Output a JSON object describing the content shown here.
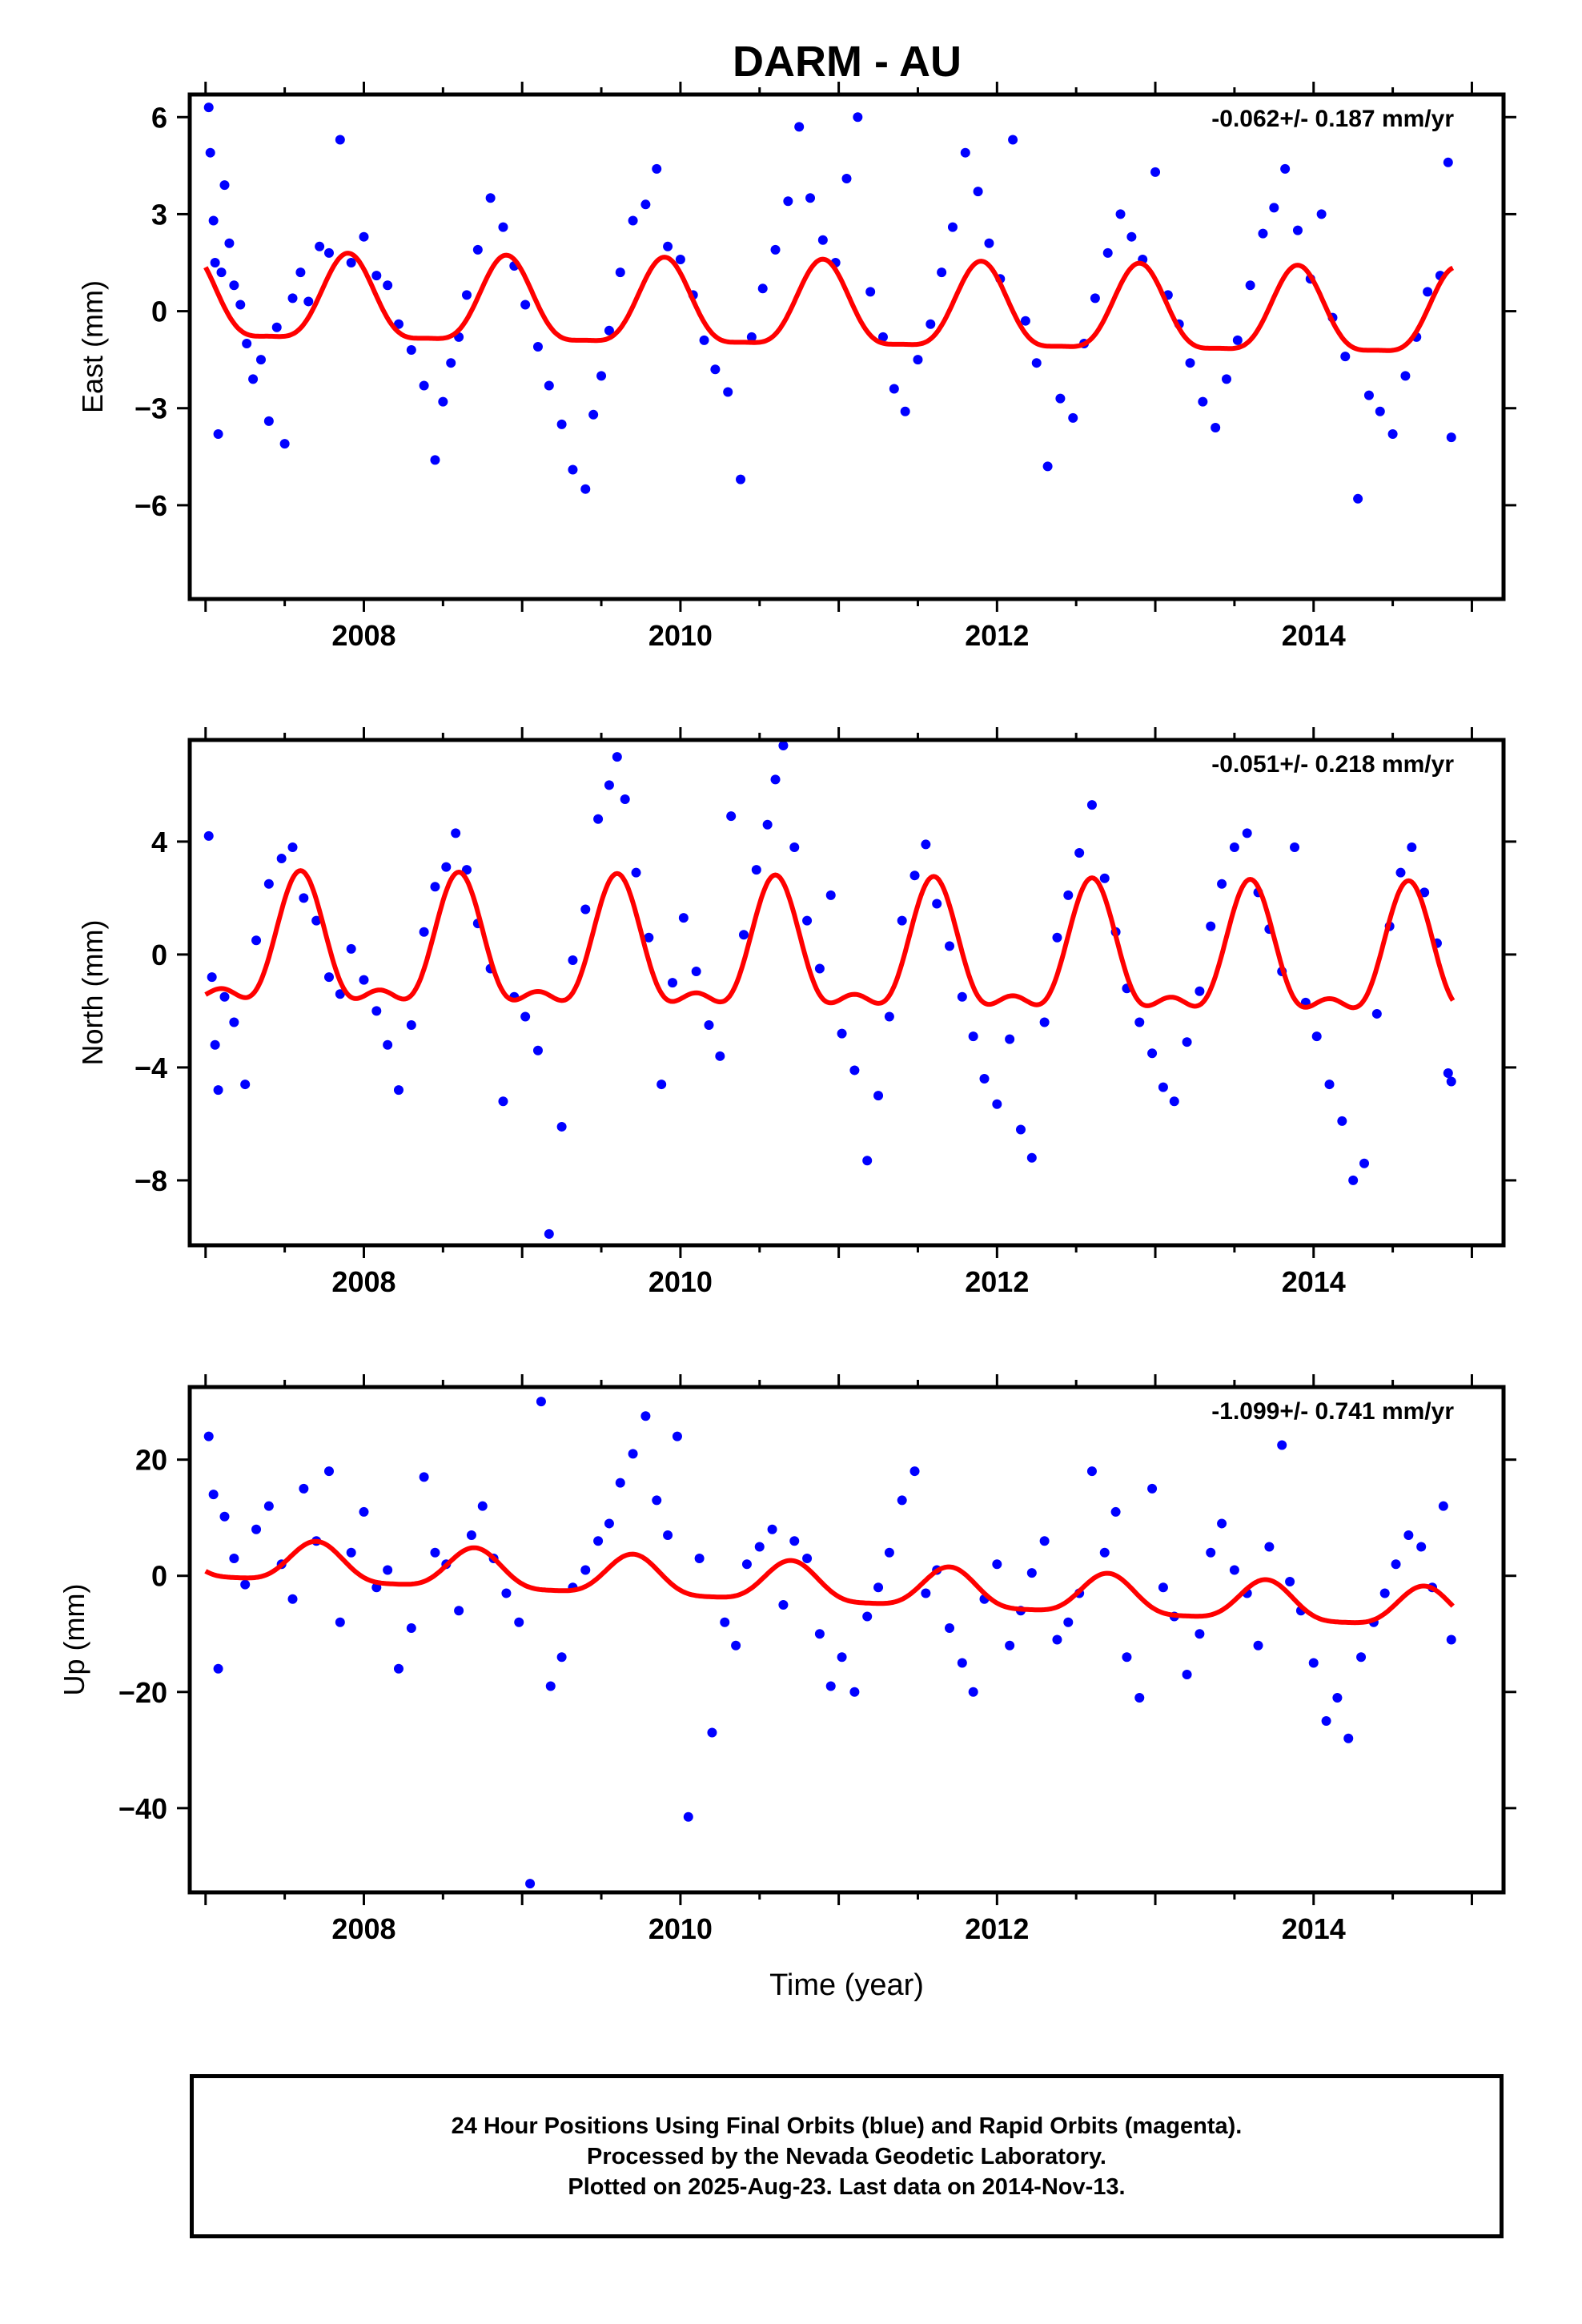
{
  "title": "DARM - AU",
  "chart_data": [
    {
      "type": "scatter",
      "ylabel": "East (mm)",
      "rate_label": "-0.062+/- 0.187 mm/yr",
      "xlim": [
        2006.9,
        2015.2
      ],
      "ylim": [
        -8.9,
        6.7
      ],
      "x_ticks": [
        2008,
        2010,
        2012,
        2014
      ],
      "y_ticks": [
        6,
        3,
        0,
        -3,
        -6
      ],
      "y_tick_labels": [
        "6",
        "3",
        "0",
        "−3",
        "−6"
      ],
      "grid": false,
      "series": [
        {
          "name": "Final Orbits",
          "color": "#0000ff",
          "x": [
            2007.02,
            2007.03,
            2007.05,
            2007.06,
            2007.08,
            2007.1,
            2007.12,
            2007.15,
            2007.18,
            2007.22,
            2007.26,
            2007.3,
            2007.35,
            2007.4,
            2007.45,
            2007.5,
            2007.55,
            2007.6,
            2007.65,
            2007.72,
            2007.78,
            2007.85,
            2007.92,
            2008.0,
            2008.08,
            2008.15,
            2008.22,
            2008.3,
            2008.38,
            2008.45,
            2008.5,
            2008.55,
            2008.6,
            2008.65,
            2008.72,
            2008.8,
            2008.88,
            2008.95,
            2009.02,
            2009.1,
            2009.17,
            2009.25,
            2009.32,
            2009.4,
            2009.45,
            2009.5,
            2009.55,
            2009.62,
            2009.7,
            2009.78,
            2009.85,
            2009.92,
            2010.0,
            2010.08,
            2010.15,
            2010.22,
            2010.3,
            2010.38,
            2010.45,
            2010.52,
            2010.6,
            2010.68,
            2010.75,
            2010.82,
            2010.9,
            2010.98,
            2011.05,
            2011.12,
            2011.2,
            2011.28,
            2011.35,
            2011.42,
            2011.5,
            2011.58,
            2011.65,
            2011.72,
            2011.8,
            2011.88,
            2011.95,
            2012.02,
            2012.1,
            2012.18,
            2012.25,
            2012.32,
            2012.4,
            2012.48,
            2012.55,
            2012.62,
            2012.7,
            2012.78,
            2012.85,
            2012.92,
            2013.0,
            2013.08,
            2013.15,
            2013.22,
            2013.3,
            2013.38,
            2013.45,
            2013.52,
            2013.6,
            2013.68,
            2013.75,
            2013.82,
            2013.9,
            2013.98,
            2014.05,
            2014.12,
            2014.2,
            2014.28,
            2014.35,
            2014.42,
            2014.5,
            2014.58,
            2014.65,
            2014.72,
            2014.8,
            2014.85,
            2014.87
          ],
          "y": [
            6.3,
            4.9,
            2.8,
            1.5,
            -3.8,
            1.2,
            3.9,
            2.1,
            0.8,
            0.2,
            -1.0,
            -2.1,
            -1.5,
            -3.4,
            -0.5,
            -4.1,
            0.4,
            1.2,
            0.3,
            2.0,
            1.8,
            5.3,
            1.5,
            2.3,
            1.1,
            0.8,
            -0.4,
            -1.2,
            -2.3,
            -4.6,
            -2.8,
            -1.6,
            -0.8,
            0.5,
            1.9,
            3.5,
            2.6,
            1.4,
            0.2,
            -1.1,
            -2.3,
            -3.5,
            -4.9,
            -5.5,
            -3.2,
            -2.0,
            -0.6,
            1.2,
            2.8,
            3.3,
            4.4,
            2.0,
            1.6,
            0.5,
            -0.9,
            -1.8,
            -2.5,
            -5.2,
            -0.8,
            0.7,
            1.9,
            3.4,
            5.7,
            3.5,
            2.2,
            1.5,
            4.1,
            6.0,
            0.6,
            -0.8,
            -2.4,
            -3.1,
            -1.5,
            -0.4,
            1.2,
            2.6,
            4.9,
            3.7,
            2.1,
            1.0,
            5.3,
            -0.3,
            -1.6,
            -4.8,
            -2.7,
            -3.3,
            -1.0,
            0.4,
            1.8,
            3.0,
            2.3,
            1.6,
            4.3,
            0.5,
            -0.4,
            -1.6,
            -2.8,
            -3.6,
            -2.1,
            -0.9,
            0.8,
            2.4,
            3.2,
            4.4,
            2.5,
            1.0,
            3.0,
            -0.2,
            -1.4,
            -5.8,
            -2.6,
            -3.1,
            -3.8,
            -2.0,
            -0.8,
            0.6,
            1.1,
            4.6,
            -3.9
          ]
        },
        {
          "name": "Model",
          "color": "#ff0000"
        }
      ],
      "model": {
        "intercept": 0.2,
        "trend_per_year": -0.062,
        "annual_amp": 1.3,
        "annual_phase_peak": 0.9,
        "semiannual_amp": 0.35
      }
    },
    {
      "type": "scatter",
      "ylabel": "North (mm)",
      "rate_label": "-0.051+/- 0.218 mm/yr",
      "xlim": [
        2006.9,
        2015.2
      ],
      "ylim": [
        -10.3,
        7.6
      ],
      "x_ticks": [
        2008,
        2010,
        2012,
        2014
      ],
      "y_ticks": [
        4,
        0,
        -4,
        -8
      ],
      "y_tick_labels": [
        "4",
        "0",
        "−4",
        "−8"
      ],
      "grid": false,
      "series": [
        {
          "name": "Final Orbits",
          "color": "#0000ff",
          "x": [
            2007.02,
            2007.04,
            2007.06,
            2007.08,
            2007.12,
            2007.18,
            2007.25,
            2007.32,
            2007.4,
            2007.48,
            2007.55,
            2007.62,
            2007.7,
            2007.78,
            2007.85,
            2007.92,
            2008.0,
            2008.08,
            2008.15,
            2008.22,
            2008.3,
            2008.38,
            2008.45,
            2008.52,
            2008.58,
            2008.65,
            2008.72,
            2008.8,
            2008.88,
            2008.95,
            2009.02,
            2009.1,
            2009.17,
            2009.25,
            2009.32,
            2009.4,
            2009.48,
            2009.55,
            2009.6,
            2009.65,
            2009.72,
            2009.8,
            2009.88,
            2009.95,
            2010.02,
            2010.1,
            2010.18,
            2010.25,
            2010.32,
            2010.4,
            2010.48,
            2010.55,
            2010.6,
            2010.65,
            2010.72,
            2010.8,
            2010.88,
            2010.95,
            2011.02,
            2011.1,
            2011.18,
            2011.25,
            2011.32,
            2011.4,
            2011.48,
            2011.55,
            2011.62,
            2011.7,
            2011.78,
            2011.85,
            2011.92,
            2012.0,
            2012.08,
            2012.15,
            2012.22,
            2012.3,
            2012.38,
            2012.45,
            2012.52,
            2012.6,
            2012.68,
            2012.75,
            2012.82,
            2012.9,
            2012.98,
            2013.05,
            2013.12,
            2013.2,
            2013.28,
            2013.35,
            2013.42,
            2013.5,
            2013.58,
            2013.65,
            2013.72,
            2013.8,
            2013.88,
            2013.95,
            2014.02,
            2014.1,
            2014.18,
            2014.25,
            2014.32,
            2014.4,
            2014.48,
            2014.55,
            2014.62,
            2014.7,
            2014.78,
            2014.85,
            2014.87
          ],
          "y": [
            4.2,
            -0.8,
            -3.2,
            -4.8,
            -1.5,
            -2.4,
            -4.6,
            0.5,
            2.5,
            3.4,
            3.8,
            2.0,
            1.2,
            -0.8,
            -1.4,
            0.2,
            -0.9,
            -2.0,
            -3.2,
            -4.8,
            -2.5,
            0.8,
            2.4,
            3.1,
            4.3,
            3.0,
            1.1,
            -0.5,
            -5.2,
            -1.5,
            -2.2,
            -3.4,
            -9.9,
            -6.1,
            -0.2,
            1.6,
            4.8,
            6.0,
            7.0,
            5.5,
            2.9,
            0.6,
            -4.6,
            -1.0,
            1.3,
            -0.6,
            -2.5,
            -3.6,
            4.9,
            0.7,
            3.0,
            4.6,
            6.2,
            7.4,
            3.8,
            1.2,
            -0.5,
            2.1,
            -2.8,
            -4.1,
            -7.3,
            -5.0,
            -2.2,
            1.2,
            2.8,
            3.9,
            1.8,
            0.3,
            -1.5,
            -2.9,
            -4.4,
            -5.3,
            -3.0,
            -6.2,
            -7.2,
            -2.4,
            0.6,
            2.1,
            3.6,
            5.3,
            2.7,
            0.8,
            -1.2,
            -2.4,
            -3.5,
            -4.7,
            -5.2,
            -3.1,
            -1.3,
            1.0,
            2.5,
            3.8,
            4.3,
            2.2,
            0.9,
            -0.6,
            3.8,
            -1.7,
            -2.9,
            -4.6,
            -5.9,
            -8.0,
            -7.4,
            -2.1,
            1.0,
            2.9,
            3.8,
            2.2,
            0.4,
            -4.2,
            -4.5
          ]
        },
        {
          "name": "Model",
          "color": "#ff0000"
        }
      ],
      "model": {
        "intercept": 0.0,
        "trend_per_year": -0.051,
        "annual_amp": 2.1,
        "annual_phase_peak": 0.6,
        "semiannual_amp": 0.9
      }
    },
    {
      "type": "scatter",
      "ylabel": "Up (mm)",
      "xlabel": "Time (year)",
      "rate_label": "-1.099+/- 0.741 mm/yr",
      "xlim": [
        2006.9,
        2015.2
      ],
      "ylim": [
        -54.5,
        32.5
      ],
      "x_ticks": [
        2008,
        2010,
        2012,
        2014
      ],
      "y_ticks": [
        20,
        0,
        -20,
        -40
      ],
      "y_tick_labels": [
        "20",
        "0",
        "−20",
        "−40"
      ],
      "grid": false,
      "series": [
        {
          "name": "Final Orbits",
          "color": "#0000ff",
          "x": [
            2007.02,
            2007.05,
            2007.08,
            2007.12,
            2007.18,
            2007.25,
            2007.32,
            2007.4,
            2007.48,
            2007.55,
            2007.62,
            2007.7,
            2007.78,
            2007.85,
            2007.92,
            2008.0,
            2008.08,
            2008.15,
            2008.22,
            2008.3,
            2008.38,
            2008.45,
            2008.52,
            2008.6,
            2008.68,
            2008.75,
            2008.82,
            2008.9,
            2008.98,
            2009.05,
            2009.12,
            2009.18,
            2009.25,
            2009.32,
            2009.4,
            2009.48,
            2009.55,
            2009.62,
            2009.7,
            2009.78,
            2009.85,
            2009.92,
            2009.98,
            2010.05,
            2010.12,
            2010.2,
            2010.28,
            2010.35,
            2010.42,
            2010.5,
            2010.58,
            2010.65,
            2010.72,
            2010.8,
            2010.88,
            2010.95,
            2011.02,
            2011.1,
            2011.18,
            2011.25,
            2011.32,
            2011.4,
            2011.48,
            2011.55,
            2011.62,
            2011.7,
            2011.78,
            2011.85,
            2011.92,
            2012.0,
            2012.08,
            2012.15,
            2012.22,
            2012.3,
            2012.38,
            2012.45,
            2012.52,
            2012.6,
            2012.68,
            2012.75,
            2012.82,
            2012.9,
            2012.98,
            2013.05,
            2013.12,
            2013.2,
            2013.28,
            2013.35,
            2013.42,
            2013.5,
            2013.58,
            2013.65,
            2013.72,
            2013.8,
            2013.85,
            2013.92,
            2014.0,
            2014.08,
            2014.15,
            2014.22,
            2014.3,
            2014.38,
            2014.45,
            2014.52,
            2014.6,
            2014.68,
            2014.75,
            2014.82,
            2014.87
          ],
          "y": [
            24.0,
            14.0,
            -16.0,
            10.2,
            3.0,
            -1.5,
            8.0,
            12.0,
            2.0,
            -4.0,
            15.0,
            6.0,
            18.0,
            -8.0,
            4.0,
            11.0,
            -2.0,
            1.0,
            -16.0,
            -9.0,
            17.0,
            4.0,
            2.0,
            -6.0,
            7.0,
            12.0,
            3.0,
            -3.0,
            -8.0,
            -53.0,
            30.0,
            -19.0,
            -14.0,
            -2.0,
            1.0,
            6.0,
            9.0,
            16.0,
            21.0,
            27.5,
            13.0,
            7.0,
            24.0,
            -41.5,
            3.0,
            -27.0,
            -8.0,
            -12.0,
            2.0,
            5.0,
            8.0,
            -5.0,
            6.0,
            3.0,
            -10.0,
            -19.0,
            -14.0,
            -20.0,
            -7.0,
            -2.0,
            4.0,
            13.0,
            18.0,
            -3.0,
            1.0,
            -9.0,
            -15.0,
            -20.0,
            -4.0,
            2.0,
            -12.0,
            -6.0,
            0.5,
            6.0,
            -11.0,
            -8.0,
            -3.0,
            18.0,
            4.0,
            11.0,
            -14.0,
            -21.0,
            15.0,
            -2.0,
            -7.0,
            -17.0,
            -10.0,
            4.0,
            9.0,
            1.0,
            -3.0,
            -12.0,
            5.0,
            22.5,
            -1.0,
            -6.0,
            -15.0,
            -25.0,
            -21.0,
            -28.0,
            -14.0,
            -8.0,
            -3.0,
            2.0,
            7.0,
            5.0,
            -2.0,
            12.0,
            -11.0
          ]
        },
        {
          "name": "Model",
          "color": "#ff0000"
        }
      ],
      "model": {
        "intercept": 2.5,
        "trend_per_year": -1.099,
        "annual_amp": 3.4,
        "annual_phase_peak": 0.7,
        "semiannual_amp": 0.8
      }
    }
  ],
  "footer": {
    "line1": "24 Hour Positions Using Final Orbits (blue) and Rapid Orbits (magenta).",
    "line2": "Processed by the Nevada Geodetic Laboratory.",
    "line3": "Plotted on 2025-Aug-23. Last data on 2014-Nov-13."
  }
}
